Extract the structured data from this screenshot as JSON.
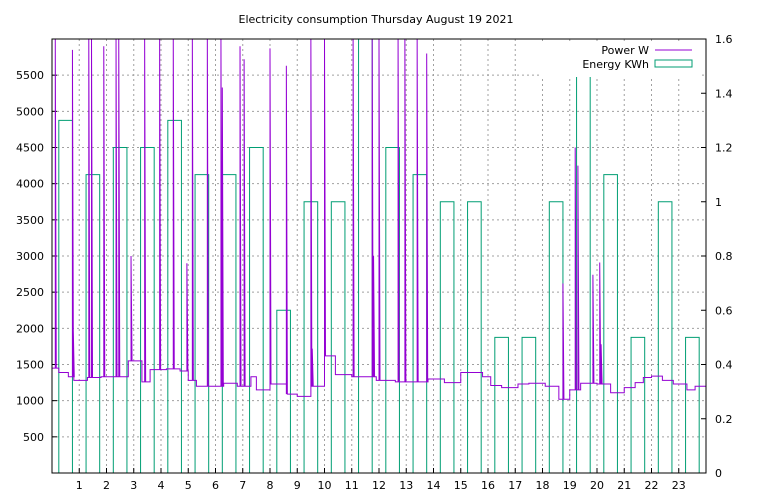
{
  "chart_data": {
    "type": "line",
    "title": "Electricity consumption Thursday August 19 2021",
    "x_range": [
      0,
      24
    ],
    "x_ticks": [
      "1",
      "2",
      "3",
      "4",
      "5",
      "6",
      "7",
      "8",
      "9",
      "10",
      "11",
      "12",
      "13",
      "14",
      "15",
      "16",
      "17",
      "18",
      "19",
      "20",
      "21",
      "22",
      "23"
    ],
    "y_left_range": [
      0,
      6000
    ],
    "y_left_ticks": [
      "500",
      "1000",
      "1500",
      "2000",
      "2500",
      "3000",
      "3500",
      "4000",
      "4500",
      "5000",
      "5500"
    ],
    "y_right_range": [
      0,
      1.6
    ],
    "y_right_ticks": [
      "0",
      "0.2",
      "0.4",
      "0.6",
      "0.8",
      "1",
      "1.2",
      "1.4",
      "1.6"
    ],
    "grid": true,
    "legend_position": "top-right",
    "colors": {
      "power": "#9400d3",
      "energy": "#009e73",
      "grid": "#a0a0a0",
      "axis": "#000000"
    },
    "series": [
      {
        "name": "Power W",
        "axis": "left",
        "style": "line",
        "baseline": [
          [
            0.0,
            1450
          ],
          [
            0.25,
            1390
          ],
          [
            0.6,
            1330
          ],
          [
            0.8,
            1280
          ],
          [
            1.3,
            1320
          ],
          [
            1.8,
            1330
          ],
          [
            2.8,
            1550
          ],
          [
            3.3,
            1260
          ],
          [
            3.6,
            1430
          ],
          [
            4.2,
            1440
          ],
          [
            4.7,
            1410
          ],
          [
            5.0,
            1280
          ],
          [
            5.3,
            1200
          ],
          [
            6.3,
            1240
          ],
          [
            6.8,
            1200
          ],
          [
            7.3,
            1330
          ],
          [
            7.5,
            1150
          ],
          [
            8.0,
            1230
          ],
          [
            8.6,
            1090
          ],
          [
            9.0,
            1060
          ],
          [
            9.5,
            1200
          ],
          [
            10.0,
            1620
          ],
          [
            10.4,
            1360
          ],
          [
            11.0,
            1330
          ],
          [
            11.9,
            1280
          ],
          [
            12.6,
            1260
          ],
          [
            13.2,
            1260
          ],
          [
            13.8,
            1300
          ],
          [
            14.4,
            1250
          ],
          [
            15.0,
            1390
          ],
          [
            15.8,
            1330
          ],
          [
            16.1,
            1210
          ],
          [
            16.5,
            1180
          ],
          [
            17.1,
            1230
          ],
          [
            17.5,
            1240
          ],
          [
            18.1,
            1200
          ],
          [
            18.6,
            1020
          ],
          [
            19.0,
            1150
          ],
          [
            19.4,
            1240
          ],
          [
            20.0,
            1230
          ],
          [
            20.5,
            1110
          ],
          [
            21.0,
            1180
          ],
          [
            21.4,
            1250
          ],
          [
            21.7,
            1320
          ],
          [
            22.0,
            1340
          ],
          [
            22.4,
            1280
          ],
          [
            22.8,
            1230
          ],
          [
            23.3,
            1150
          ],
          [
            23.6,
            1200
          ],
          [
            24.0,
            1200
          ]
        ],
        "spikes": [
          [
            0.12,
            6000
          ],
          [
            0.75,
            5850
          ],
          [
            0.78,
            2000
          ],
          [
            1.35,
            6000
          ],
          [
            1.45,
            6000
          ],
          [
            1.9,
            5900
          ],
          [
            2.35,
            6000
          ],
          [
            2.45,
            6000
          ],
          [
            2.9,
            3000
          ],
          [
            3.4,
            6000
          ],
          [
            3.95,
            6000
          ],
          [
            4.45,
            6000
          ],
          [
            4.95,
            2900
          ],
          [
            5.15,
            6000
          ],
          [
            5.7,
            6000
          ],
          [
            6.2,
            6000
          ],
          [
            6.25,
            5330
          ],
          [
            6.9,
            5900
          ],
          [
            7.05,
            5720
          ],
          [
            8.0,
            5870
          ],
          [
            8.6,
            5630
          ],
          [
            9.5,
            6000
          ],
          [
            9.55,
            1720
          ],
          [
            10.0,
            6000
          ],
          [
            11.05,
            6000
          ],
          [
            11.75,
            6000
          ],
          [
            11.8,
            3000
          ],
          [
            12.0,
            6000
          ],
          [
            12.7,
            6000
          ],
          [
            12.95,
            6000
          ],
          [
            13.4,
            6000
          ],
          [
            13.75,
            5800
          ],
          [
            18.75,
            2620
          ],
          [
            19.2,
            4500
          ],
          [
            19.3,
            4250
          ],
          [
            19.85,
            2740
          ],
          [
            20.1,
            2910
          ],
          [
            20.15,
            1780
          ]
        ]
      },
      {
        "name": "Energy KWh",
        "axis": "right",
        "style": "histeps",
        "values": [
          1.3,
          1.1,
          1.2,
          1.2,
          1.3,
          1.1,
          1.1,
          1.2,
          0.6,
          1.0,
          1.0,
          1.6,
          1.2,
          1.1,
          1.0,
          1.0,
          0.5,
          0.5,
          1.0,
          1.5,
          1.1,
          0.5,
          1.0,
          0.5
        ]
      }
    ]
  }
}
